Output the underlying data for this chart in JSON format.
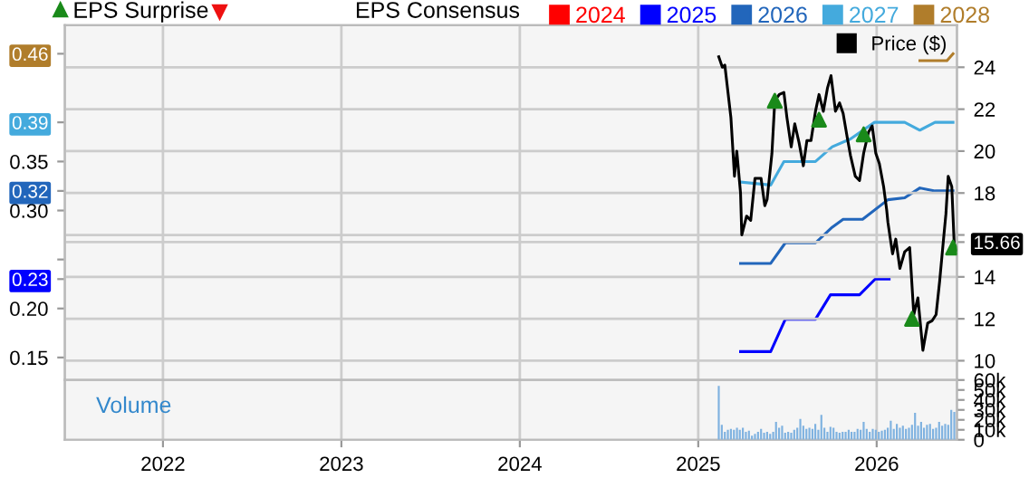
{
  "chart_data": [
    {
      "type": "line",
      "legend": "top",
      "legend_title": "EPS Consensus",
      "grid": true,
      "tick_labels": "y",
      "xlim": [
        2021.45,
        2026.45
      ],
      "xticks": [
        2022,
        2023,
        2024,
        2025,
        2026
      ],
      "ylim": [
        0.127,
        0.489
      ],
      "yticks": [
        0.15,
        {
          "value": 0.2,
          "label": "0.20"
        },
        {
          "value": 0.23,
          "label": "0.23"
        },
        {
          "value": 0.25,
          "label": null
        },
        {
          "value": 0.3,
          "label": "0.30"
        },
        {
          "value": 0.32,
          "label": "0.32"
        },
        0.35,
        {
          "value": 0.39,
          "label": "0.39"
        },
        {
          "value": 0.46,
          "label": "0.46"
        }
      ],
      "y2lim": [
        9.08,
        26
      ],
      "y2ticks": [
        10,
        12,
        14,
        {
          "value": 15.66,
          "label": "15.66"
        },
        {
          "value": 16,
          "label": null
        },
        18,
        20,
        22,
        24
      ],
      "series": [
        {
          "name": "EPS Surprise",
          "type": "scatter",
          "marker": "triangle",
          "color": "#1a8a1a",
          "axis": "y2",
          "x": [
            2025.429,
            2025.677,
            2025.927,
            2026.198,
            2026.428
          ],
          "values": [
            22.4,
            21.5,
            20.8,
            12.0,
            15.4
          ]
        },
        {
          "name": "2024",
          "color": "#ff0000"
        },
        {
          "name": "2025",
          "color": "#0000ff",
          "x": [
            2025.237,
            2025.406,
            2025.488,
            2025.657,
            2025.741,
            2025.904,
            2025.992,
            2026.07
          ],
          "values": [
            0.156,
            0.156,
            0.189,
            0.189,
            0.214,
            0.214,
            0.23,
            0.23
          ]
        },
        {
          "name": "2026",
          "color": "#2266bb",
          "x": [
            2025.237,
            2025.406,
            2025.488,
            2025.657,
            2025.751,
            2025.812,
            2025.921,
            2026.063,
            2026.157,
            2026.242,
            2026.327,
            2026.428
          ],
          "values": [
            0.246,
            0.246,
            0.267,
            0.267,
            0.283,
            0.291,
            0.291,
            0.311,
            0.313,
            0.323,
            0.32,
            0.32
          ]
        },
        {
          "name": "2027",
          "color": "#44aadd",
          "x": [
            2025.237,
            2025.406,
            2025.48,
            2025.657,
            2025.751,
            2025.853,
            2025.988,
            2026.157,
            2026.242,
            2026.327,
            2026.428
          ],
          "values": [
            0.329,
            0.326,
            0.35,
            0.35,
            0.365,
            0.373,
            0.39,
            0.39,
            0.382,
            0.39,
            0.39
          ]
        },
        {
          "name": "2028",
          "color": "#b07d2b",
          "x": [
            2026.242,
            2026.394,
            2026.428
          ],
          "values": [
            0.453,
            0.453,
            0.46
          ]
        },
        {
          "name": "Price ($)",
          "color": "#000000",
          "axis": "y2",
          "x": [
            2025.115,
            2025.135,
            2025.149,
            2025.183,
            2025.203,
            2025.216,
            2025.237,
            2025.244,
            2025.271,
            2025.294,
            2025.318,
            2025.352,
            2025.373,
            2025.386,
            2025.413,
            2025.429,
            2025.454,
            2025.48,
            2025.497,
            2025.521,
            2025.541,
            2025.565,
            2025.589,
            2025.609,
            2025.632,
            2025.657,
            2025.677,
            2025.701,
            2025.724,
            2025.744,
            2025.769,
            2025.792,
            2025.812,
            2025.836,
            2025.853,
            2025.88,
            2025.904,
            2025.927,
            2025.954,
            2025.975,
            2025.995,
            2026.015,
            2026.039,
            2026.056,
            2026.063,
            2026.089,
            2026.107,
            2026.13,
            2026.157,
            2026.185,
            2026.208,
            2026.231,
            2026.259,
            2026.286,
            2026.31,
            2026.333,
            2026.353,
            2026.378,
            2026.388,
            2026.401,
            2026.421,
            2026.434
          ],
          "values": [
            24.5,
            24.0,
            24.1,
            21.6,
            18.8,
            20.0,
            18.0,
            16.0,
            16.9,
            16.7,
            18.7,
            18.7,
            17.4,
            17.7,
            19.9,
            22.4,
            22.7,
            22.8,
            21.6,
            20.2,
            21.3,
            20.4,
            19.3,
            20.5,
            20.5,
            21.9,
            22.7,
            21.9,
            23.0,
            23.6,
            21.9,
            22.3,
            21.8,
            20.6,
            19.8,
            18.8,
            18.6,
            19.9,
            20.9,
            21.2,
            19.9,
            19.4,
            18.3,
            17.2,
            16.6,
            15.1,
            15.8,
            14.4,
            15.2,
            15.4,
            12.2,
            13.0,
            10.5,
            11.8,
            11.9,
            12.2,
            13.8,
            16.1,
            17.0,
            18.8,
            18.3,
            15.66
          ]
        }
      ]
    },
    {
      "type": "bar",
      "annotations": [
        "Volume"
      ],
      "grid": "x",
      "xlim": [
        2021.45,
        2026.45
      ],
      "xticks": [
        2022,
        2023,
        2024,
        2025,
        2026
      ],
      "y2lim": [
        0,
        60
      ],
      "y2ticks": [
        0,
        {
          "value": 10,
          "label": "10k"
        },
        {
          "value": 20,
          "label": "20k"
        },
        {
          "value": 30,
          "label": "30k"
        },
        {
          "value": 40,
          "label": "40k"
        },
        {
          "value": 50,
          "label": "50k"
        },
        {
          "value": 60,
          "label": "60k"
        }
      ],
      "series": [
        {
          "axis": "y2",
          "color": "#7fb2e0",
          "x": [
            2025.115,
            2025.132,
            2025.149,
            2025.166,
            2025.183,
            2025.2,
            2025.217,
            2025.233,
            2025.25,
            2025.267,
            2025.284,
            2025.301,
            2025.318,
            2025.335,
            2025.352,
            2025.369,
            2025.386,
            2025.403,
            2025.42,
            2025.436,
            2025.453,
            2025.47,
            2025.487,
            2025.504,
            2025.521,
            2025.538,
            2025.555,
            2025.572,
            2025.589,
            2025.606,
            2025.623,
            2025.64,
            2025.656,
            2025.673,
            2025.69,
            2025.707,
            2025.724,
            2025.741,
            2025.758,
            2025.775,
            2025.792,
            2025.809,
            2025.826,
            2025.843,
            2025.859,
            2025.876,
            2025.893,
            2025.91,
            2025.927,
            2025.944,
            2025.961,
            2025.978,
            2025.995,
            2026.012,
            2026.029,
            2026.046,
            2026.062,
            2026.079,
            2026.096,
            2026.113,
            2026.13,
            2026.147,
            2026.164,
            2026.181,
            2026.198,
            2026.215,
            2026.232,
            2026.249,
            2026.265,
            2026.282,
            2026.299,
            2026.316,
            2026.333,
            2026.35,
            2026.367,
            2026.384,
            2026.401,
            2026.418,
            2026.435
          ],
          "values": [
            54,
            15,
            8,
            10,
            11,
            10,
            12,
            10,
            12,
            8,
            9,
            4,
            6,
            8,
            11,
            7,
            8,
            6,
            8,
            18,
            12,
            14,
            7,
            8,
            7,
            10,
            12,
            21,
            14,
            11,
            12,
            11,
            16,
            10,
            25,
            12,
            8,
            13,
            12,
            8,
            7,
            8,
            8,
            10,
            8,
            8,
            11,
            10,
            18,
            11,
            8,
            11,
            10,
            8,
            9,
            10,
            12,
            19,
            11,
            16,
            12,
            14,
            11,
            12,
            15,
            27,
            14,
            18,
            12,
            15,
            16,
            11,
            12,
            18,
            14,
            16,
            15,
            30,
            28
          ]
        }
      ]
    }
  ]
}
